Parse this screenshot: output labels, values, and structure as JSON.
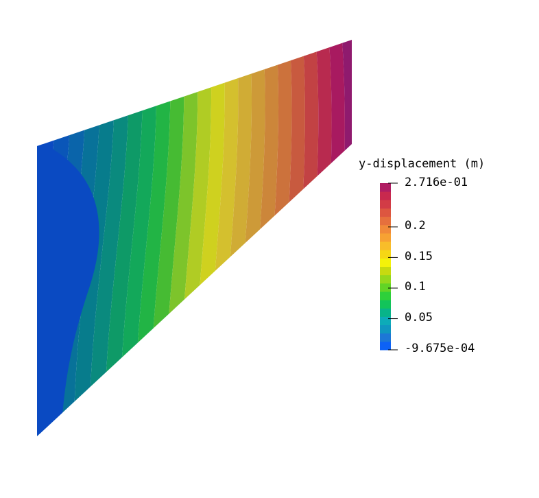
{
  "legend": {
    "title": "y-displacement (m)",
    "max_label": "2.716e-01",
    "min_label": "-9.675e-04",
    "ticks": [
      {
        "label": "0.2",
        "value": 0.2
      },
      {
        "label": "0.15",
        "value": 0.15
      },
      {
        "label": "0.1",
        "value": 0.1
      },
      {
        "label": "0.05",
        "value": 0.05
      }
    ],
    "min_value": -0.0009675,
    "max_value": 0.2716,
    "band_count": 20
  },
  "colormap": [
    "#0d62f6",
    "#1d77d6",
    "#1096c0",
    "#0dabb8",
    "#08b489",
    "#12c45a",
    "#2ed03a",
    "#62d426",
    "#95d81c",
    "#c7da10",
    "#f4f20a",
    "#f6d715",
    "#f8bd2a",
    "#f7a233",
    "#f18a39",
    "#e6703d",
    "#dd5640",
    "#d23c46",
    "#c8294e",
    "#b01e63"
  ],
  "surface_colors": [
    "#0a4ac2",
    "#0a56b8",
    "#0a64aa",
    "#087299",
    "#077c8c",
    "#0a8a7e",
    "#0e9a67",
    "#13a85a",
    "#22b445",
    "#46bb33",
    "#7dc42b",
    "#b0cc24",
    "#cfd11f",
    "#d4c02e",
    "#d0ac35",
    "#cd9a38",
    "#cc863a",
    "#cc723c",
    "#c85a3f",
    "#c24244",
    "#b82a4f",
    "#a81a60",
    "#8f1a6e"
  ]
}
